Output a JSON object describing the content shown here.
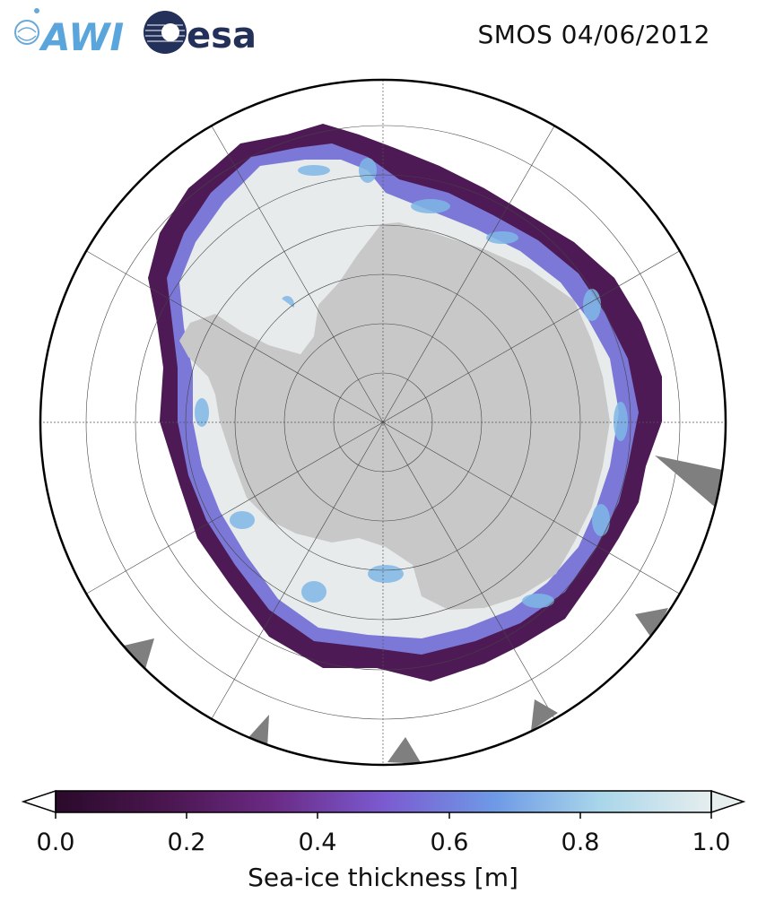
{
  "header": {
    "title": "SMOS 04/06/2012",
    "logos": [
      "AWI",
      "esa"
    ]
  },
  "map": {
    "projection": "south-polar-stereographic",
    "colors": {
      "land": "#c8c8c8",
      "ice_shelf": "#e8e8e8",
      "ocean": "#ffffff",
      "no_data": "#7f7f7f",
      "thin_ice": "#3b0f3a",
      "thick_ice": "#e4ecee"
    }
  },
  "colorbar": {
    "label": "Sea-ice thickness [m]",
    "ticks": [
      "0.0",
      "0.2",
      "0.4",
      "0.6",
      "0.8",
      "1.0"
    ],
    "range": [
      0.0,
      1.0
    ],
    "colormap": [
      "#2a0a2a",
      "#4b1650",
      "#6a2a84",
      "#7b5ad0",
      "#6e9ae6",
      "#a9d6ea",
      "#e6eeee"
    ]
  }
}
